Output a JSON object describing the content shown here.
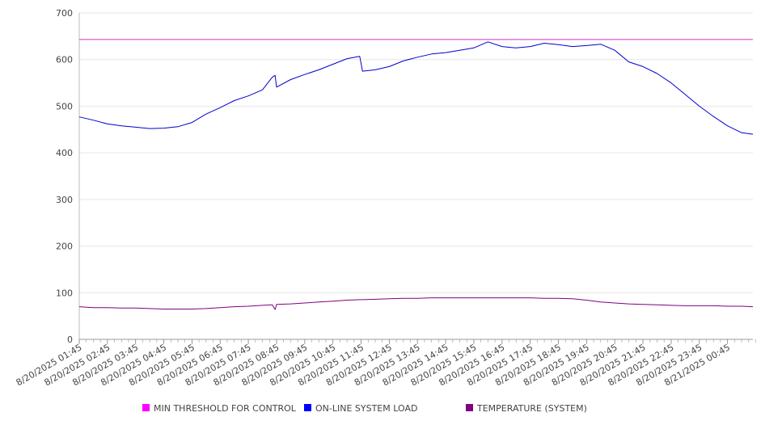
{
  "chart_data": {
    "type": "line",
    "title": "",
    "xlabel": "",
    "ylabel": "",
    "ylim": [
      0,
      700
    ],
    "yticks": [
      0,
      100,
      200,
      300,
      400,
      500,
      600,
      700
    ],
    "grid": true,
    "legend_position": "bottom",
    "x_tick_labels": [
      "8/20/2025 01:45",
      "8/20/2025 02:45",
      "8/20/2025 03:45",
      "8/20/2025 04:45",
      "8/20/2025 05:45",
      "8/20/2025 06:45",
      "8/20/2025 07:45",
      "8/20/2025 08:45",
      "8/20/2025 09:45",
      "8/20/2025 10:45",
      "8/20/2025 11:45",
      "8/20/2025 12:45",
      "8/20/2025 13:45",
      "8/20/2025 14:45",
      "8/20/2025 15:45",
      "8/20/2025 16:45",
      "8/20/2025 17:45",
      "8/20/2025 18:45",
      "8/20/2025 19:45",
      "8/20/2025 20:45",
      "8/20/2025 21:45",
      "8/20/2025 22:45",
      "8/20/2025 23:45",
      "8/21/2025 00:45"
    ],
    "x_hours": [
      0,
      0.5,
      1,
      1.5,
      2,
      2.5,
      3,
      3.5,
      4,
      4.5,
      5,
      5.5,
      6,
      6.5,
      6.85,
      6.95,
      7,
      7.5,
      8,
      8.5,
      9,
      9.5,
      9.95,
      10.05,
      10.5,
      11,
      11.5,
      12,
      12.5,
      13,
      13.5,
      14,
      14.5,
      15,
      15.5,
      16,
      16.5,
      17,
      17.5,
      18,
      18.5,
      19,
      19.5,
      20,
      20.5,
      21,
      21.5,
      22,
      22.5,
      23,
      23.5,
      23.9
    ],
    "series": [
      {
        "name": "MIN THRESHOLD FOR CONTROL",
        "color": "#cc33cc",
        "values": [
          643,
          643,
          643,
          643,
          643,
          643,
          643,
          643,
          643,
          643,
          643,
          643,
          643,
          643,
          643,
          643,
          643,
          643,
          643,
          643,
          643,
          643,
          643,
          643,
          643,
          643,
          643,
          643,
          643,
          643,
          643,
          643,
          643,
          643,
          643,
          643,
          643,
          643,
          643,
          643,
          643,
          643,
          643,
          643,
          643,
          643,
          643,
          643,
          643,
          643,
          643,
          643
        ]
      },
      {
        "name": "ON-LINE SYSTEM LOAD",
        "color": "#0000cc",
        "values": [
          477,
          470,
          462,
          458,
          455,
          452,
          453,
          456,
          465,
          483,
          497,
          512,
          522,
          535,
          562,
          566,
          541,
          557,
          568,
          578,
          590,
          602,
          607,
          575,
          578,
          585,
          597,
          605,
          612,
          615,
          620,
          625,
          638,
          628,
          625,
          628,
          635,
          632,
          628,
          630,
          633,
          620,
          595,
          585,
          570,
          550,
          525,
          500,
          478,
          458,
          443,
          440
        ]
      },
      {
        "name": "TEMPERATURE (SYSTEM)",
        "color": "#800080",
        "values": [
          70,
          68,
          68,
          67,
          67,
          66,
          65,
          65,
          65,
          66,
          68,
          70,
          71,
          73,
          74,
          64,
          75,
          76,
          78,
          80,
          82,
          84,
          85,
          85,
          86,
          87,
          88,
          88,
          89,
          89,
          89,
          89,
          89,
          89,
          89,
          89,
          88,
          88,
          87,
          84,
          80,
          78,
          76,
          75,
          74,
          73,
          72,
          72,
          72,
          71,
          71,
          70
        ]
      }
    ]
  }
}
